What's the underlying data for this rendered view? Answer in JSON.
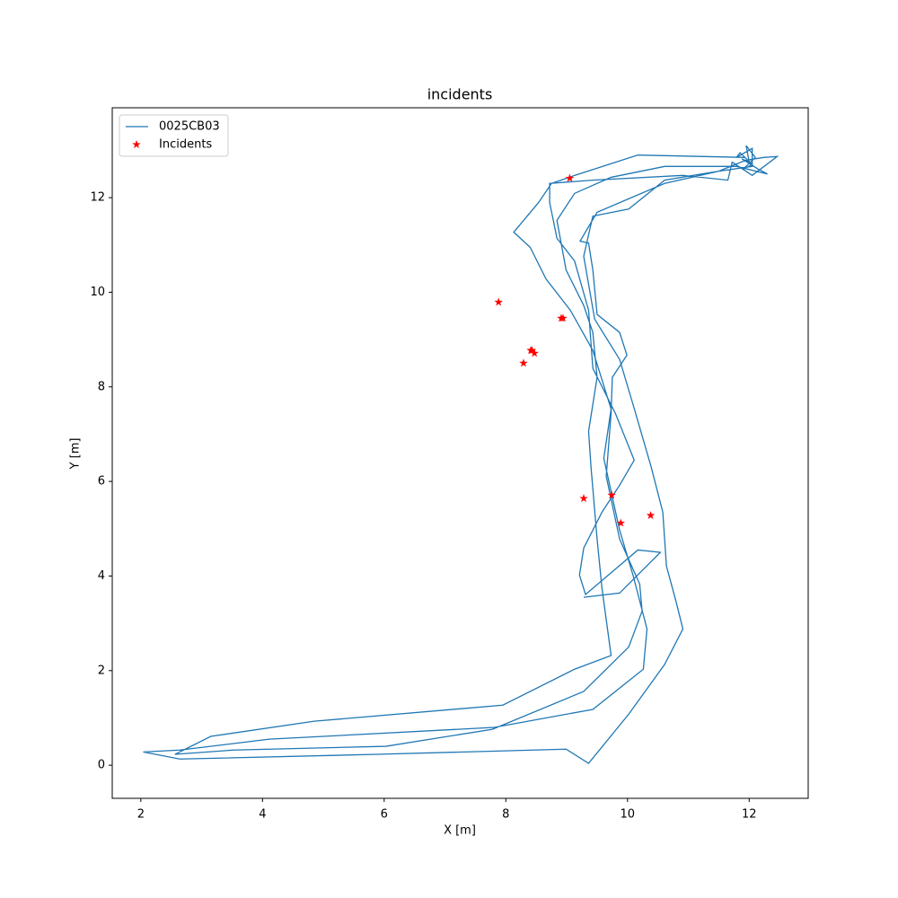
{
  "chart_data": {
    "type": "line",
    "title": "incidents",
    "xlabel": "X [m]",
    "ylabel": "Y [m]",
    "xlim": [
      1.53,
      12.97
    ],
    "ylim": [
      -0.7,
      13.9
    ],
    "xticks": [
      2,
      4,
      6,
      8,
      10,
      12
    ],
    "yticks": [
      0,
      2,
      4,
      6,
      8,
      10,
      12
    ],
    "grid": false,
    "legend": "upper left",
    "series": [
      {
        "name": "0025CB03",
        "color": "#1f77b4",
        "kind": "line",
        "x": [
          11.94,
          10.17,
          9.13,
          8.75,
          8.54,
          8.13,
          8.4,
          8.66,
          9.06,
          9.43,
          9.73,
          9.61,
          9.87,
          10.09,
          10.32,
          10.26,
          9.43,
          7.81,
          4.11,
          2.64,
          2.04,
          2.64,
          5.88,
          8.99,
          9.36,
          10.02,
          10.61,
          10.91,
          10.8,
          10.64,
          10.58,
          10.39,
          10.09,
          9.87,
          9.46,
          9.28,
          9.43,
          10.02,
          10.61,
          11.5,
          12.05,
          12.05,
          11.79,
          11.85,
          12.05,
          11.9,
          12.1,
          11.95,
          12.0,
          11.88,
          12.15,
          12.3,
          11.79,
          10.61,
          9.73,
          9.13,
          8.84,
          8.99,
          9.28,
          9.43,
          9.5,
          9.36,
          9.4,
          9.5,
          9.58,
          9.73,
          9.13,
          7.95,
          4.85,
          3.15,
          2.56,
          3.52,
          6.03,
          7.78,
          9.28,
          10.02,
          10.24,
          10.2,
          9.87,
          9.65,
          9.73,
          9.75,
          9.99,
          9.87,
          9.5,
          9.43,
          9.36,
          9.22,
          9.5,
          10.61,
          11.5,
          11.94,
          12.24,
          12.46,
          12.05,
          11.72,
          11.65,
          10.91,
          9.43,
          8.72,
          8.72,
          8.84,
          9.13,
          9.36,
          9.43,
          9.8,
          10.11,
          9.87,
          9.58,
          9.28,
          9.21,
          9.31,
          10.17,
          10.54,
          9.87,
          9.28
        ],
        "y": [
          12.85,
          12.9,
          12.47,
          12.3,
          11.9,
          11.27,
          10.95,
          10.28,
          9.62,
          8.77,
          7.53,
          6.49,
          4.97,
          4.02,
          2.88,
          2.03,
          1.18,
          0.8,
          0.55,
          0.32,
          0.28,
          0.13,
          0.23,
          0.34,
          0.04,
          1.08,
          2.13,
          2.88,
          3.45,
          4.21,
          5.35,
          6.3,
          7.63,
          8.58,
          9.43,
          10.76,
          11.61,
          11.76,
          12.37,
          12.56,
          12.66,
          13.04,
          12.85,
          12.95,
          12.7,
          12.6,
          12.85,
          13.1,
          12.75,
          12.82,
          12.6,
          12.5,
          12.66,
          12.66,
          12.43,
          12.09,
          11.52,
          10.47,
          9.72,
          9.15,
          8.2,
          7.06,
          6.3,
          4.78,
          3.74,
          2.32,
          2.03,
          1.27,
          0.93,
          0.61,
          0.23,
          0.32,
          0.4,
          0.76,
          1.56,
          2.5,
          3.26,
          3.83,
          4.78,
          6.11,
          7.44,
          8.2,
          8.67,
          9.15,
          9.53,
          10.47,
          11.04,
          11.08,
          11.69,
          12.3,
          12.56,
          12.79,
          12.85,
          12.87,
          12.47,
          12.75,
          12.37,
          12.47,
          12.37,
          12.3,
          11.9,
          11.14,
          10.66,
          9.62,
          8.39,
          7.44,
          6.45,
          5.92,
          5.35,
          4.59,
          4.02,
          3.61,
          4.55,
          4.5,
          3.64,
          3.55
        ]
      },
      {
        "name": "Incidents",
        "color": "#ff0000",
        "kind": "scatter",
        "marker": "star",
        "x": [
          9.05,
          7.88,
          8.91,
          8.94,
          8.41,
          8.47,
          8.43,
          8.29,
          9.28,
          9.74,
          9.89,
          10.38
        ],
        "y": [
          12.41,
          9.79,
          9.45,
          9.45,
          8.77,
          8.71,
          8.77,
          8.5,
          5.64,
          5.71,
          5.12,
          5.28
        ]
      }
    ]
  }
}
